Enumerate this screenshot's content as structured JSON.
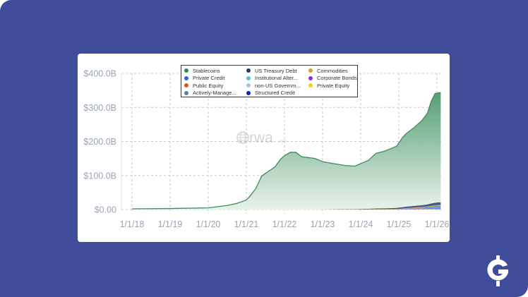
{
  "watermark": {
    "text": "rwa",
    "suffix": ".xyz",
    "icon": "globe-icon"
  },
  "brand_logo": {
    "icon": "g-dollar-logo-icon"
  },
  "colors": {
    "background": "#3e4c9a",
    "card": "#ffffff",
    "stablecoins_fill_top": "#4d9a6e",
    "stablecoins_fill_bottom": "#e6f2ea",
    "stablecoins_line": "#3f8a5d",
    "gridline": "#c8c8c8",
    "tick_label": "#9aa3b5"
  },
  "legend": {
    "items": [
      {
        "label": "Stablecoins",
        "color": "#2e8b57"
      },
      {
        "label": "US Treasury Debt",
        "color": "#1b3f73"
      },
      {
        "label": "Commodities",
        "color": "#d4a02e"
      },
      {
        "label": "Private Credit",
        "color": "#2563eb"
      },
      {
        "label": "Institutional Alter...",
        "color": "#4fc3e0"
      },
      {
        "label": "Corporate Bonds",
        "color": "#8a2be2"
      },
      {
        "label": "Public Equity",
        "color": "#e2531f"
      },
      {
        "label": "non-US Governm...",
        "color": "#a9c4e0"
      },
      {
        "label": "Private Equity",
        "color": "#f2d21b"
      },
      {
        "label": "Actively-Manage...",
        "color": "#4a86a8"
      },
      {
        "label": "Structured Credit",
        "color": "#0a1ed6"
      }
    ]
  },
  "axes": {
    "y_ticks": [
      "$400.0B",
      "$300.0B",
      "$200.0B",
      "$100.0B",
      "$0.00"
    ],
    "x_ticks": [
      "1/1/18",
      "1/1/19",
      "1/1/20",
      "1/1/21",
      "1/1/22",
      "1/1/23",
      "1/1/24",
      "1/1/25",
      "1/1/26"
    ]
  },
  "chart_data": {
    "type": "area",
    "title": "",
    "xlabel": "",
    "ylabel": "",
    "ylim": [
      0,
      400
    ],
    "y_unit": "$B",
    "grid": true,
    "legend_position": "top-center (inside plot)",
    "x_tick_labels": [
      "1/1/18",
      "1/1/19",
      "1/1/20",
      "1/1/21",
      "1/1/22",
      "1/1/23",
      "1/1/24",
      "1/1/25",
      "1/1/26"
    ],
    "y_tick_labels": [
      "$0.00",
      "$100.0B",
      "$200.0B",
      "$300.0B",
      "$400.0B"
    ],
    "x": [
      2018.0,
      2019.0,
      2020.0,
      2020.5,
      2020.75,
      2021.0,
      2021.1,
      2021.25,
      2021.4,
      2021.55,
      2021.75,
      2021.9,
      2022.0,
      2022.15,
      2022.3,
      2022.45,
      2022.6,
      2022.8,
      2023.0,
      2023.3,
      2023.6,
      2023.85,
      2024.0,
      2024.2,
      2024.4,
      2024.6,
      2024.8,
      2024.95,
      2025.1,
      2025.2,
      2025.4,
      2025.6,
      2025.75,
      2025.85,
      2025.95,
      2026.05,
      2026.1
    ],
    "series": [
      {
        "name": "Stablecoins",
        "values": [
          2,
          3,
          5,
          12,
          18,
          28,
          40,
          62,
          98,
          110,
          125,
          148,
          158,
          168,
          168,
          155,
          153,
          150,
          140,
          134,
          128,
          126,
          133,
          142,
          162,
          167,
          175,
          182,
          205,
          215,
          230,
          248,
          268,
          300,
          321,
          322,
          322
        ]
      },
      {
        "name": "US Treasury Debt",
        "values": [
          0,
          0,
          0,
          0,
          0,
          0,
          0,
          0,
          0,
          0,
          0,
          0,
          0,
          0,
          0,
          0,
          0,
          0,
          0.1,
          0.3,
          0.6,
          0.8,
          1,
          1.5,
          2,
          2.5,
          3,
          3.5,
          4,
          4.5,
          5,
          5.5,
          6,
          7,
          7.5,
          8,
          8
        ]
      },
      {
        "name": "Commodities",
        "values": [
          0,
          0,
          0,
          0,
          0,
          0,
          0,
          0,
          0,
          0,
          0,
          0,
          0,
          0,
          0,
          0,
          0,
          0,
          0.5,
          0.5,
          0.6,
          0.7,
          0.8,
          0.9,
          1,
          1.1,
          1.2,
          1.3,
          1.5,
          1.7,
          2,
          2.3,
          2.6,
          3,
          3.2,
          3.4,
          3.4
        ]
      },
      {
        "name": "Private Credit",
        "values": [
          0,
          0,
          0,
          0,
          0,
          0,
          0,
          0,
          0,
          0,
          0,
          0,
          0,
          0,
          0,
          0,
          0,
          0,
          0,
          0,
          0,
          0,
          0,
          0,
          0,
          0,
          0,
          0,
          0.5,
          0.8,
          1,
          1.5,
          2,
          2.5,
          3,
          3.2,
          3.2
        ]
      },
      {
        "name": "Institutional Alter...",
        "values": [
          0,
          0,
          0,
          0,
          0,
          0,
          0,
          0,
          0,
          0,
          0,
          0,
          0,
          0,
          0,
          0,
          0,
          0,
          0,
          0,
          0,
          0,
          0,
          0,
          0,
          0,
          0,
          0,
          0.2,
          0.3,
          0.5,
          0.7,
          1,
          1.2,
          1.5,
          1.6,
          1.6
        ]
      },
      {
        "name": "Corporate Bonds",
        "values": [
          0,
          0,
          0,
          0,
          0,
          0,
          0,
          0,
          0,
          0,
          0,
          0,
          0,
          0,
          0,
          0,
          0,
          0,
          0,
          0,
          0,
          0,
          0,
          0,
          0,
          0,
          0,
          0,
          0.5,
          0.8,
          1,
          1.2,
          1.5,
          1.8,
          2,
          2.2,
          2.2
        ]
      },
      {
        "name": "Public Equity",
        "values": [
          0,
          0,
          0,
          0,
          0,
          0,
          0,
          0,
          0,
          0,
          0,
          0,
          0,
          0,
          0,
          0,
          0,
          0,
          0,
          0,
          0,
          0,
          0,
          0,
          0,
          0,
          0,
          0,
          0,
          0,
          0.2,
          0.3,
          0.4,
          0.5,
          0.6,
          0.7,
          0.7
        ]
      },
      {
        "name": "non-US Governm...",
        "values": [
          0,
          0,
          0,
          0,
          0,
          0,
          0,
          0,
          0,
          0,
          0,
          0,
          0,
          0,
          0,
          0,
          0,
          0,
          0,
          0,
          0,
          0,
          0,
          0,
          0,
          0,
          0,
          0,
          0.2,
          0.3,
          0.4,
          0.5,
          0.6,
          0.7,
          0.8,
          0.8,
          0.8
        ]
      },
      {
        "name": "Private Equity",
        "values": [
          0,
          0,
          0,
          0,
          0,
          0,
          0,
          0,
          0,
          0,
          0,
          0,
          0,
          0,
          0,
          0,
          0,
          0,
          0,
          0,
          0,
          0,
          0,
          0,
          0,
          0,
          0,
          0,
          0,
          0,
          0.1,
          0.1,
          0.2,
          0.2,
          0.3,
          0.3,
          0.3
        ]
      },
      {
        "name": "Actively-Manage...",
        "values": [
          0,
          0,
          0,
          0,
          0,
          0,
          0,
          0,
          0,
          0,
          0,
          0,
          0,
          0,
          0,
          0,
          0,
          0,
          0,
          0,
          0,
          0,
          0,
          0,
          0,
          0,
          0,
          0,
          0.1,
          0.2,
          0.3,
          0.4,
          0.5,
          0.6,
          0.6,
          0.7,
          0.7
        ]
      },
      {
        "name": "Structured Credit",
        "values": [
          0,
          0,
          0,
          0,
          0,
          0,
          0,
          0,
          0,
          0,
          0,
          0,
          0,
          0,
          0,
          0,
          0,
          0,
          0,
          0,
          0,
          0,
          0,
          0,
          0,
          0,
          0,
          0,
          0,
          0,
          0.1,
          0.2,
          0.3,
          0.3,
          0.4,
          0.4,
          0.4
        ]
      }
    ]
  }
}
